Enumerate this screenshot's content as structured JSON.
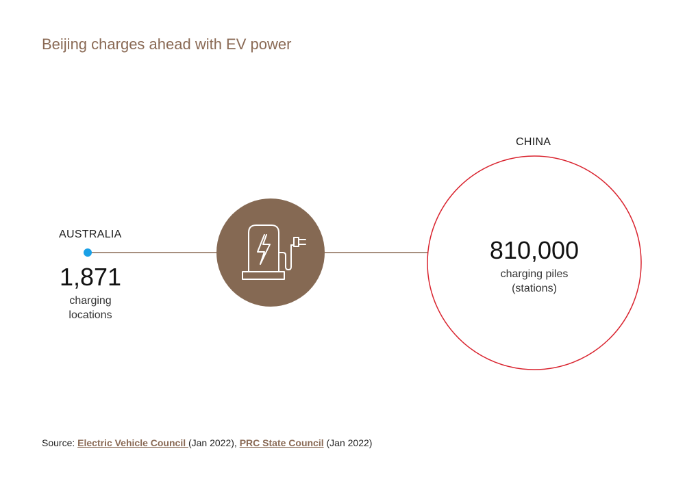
{
  "title": "Beijing charges ahead with EV power",
  "colors": {
    "title": "#8a6a55",
    "connector_line": "#8a6a55",
    "icon_circle": "#856953",
    "australia_dot": "#1aa0e6",
    "china_ring": "#d9232e",
    "source_link": "#8a6a55"
  },
  "icon": "ev-charger-icon",
  "chart_data": {
    "type": "bubble-comparison",
    "title": "Beijing charges ahead with EV power",
    "items": [
      {
        "country": "AUSTRALIA",
        "value": 1871,
        "value_label": "1,871",
        "unit_lines": [
          "charging",
          "locations"
        ]
      },
      {
        "country": "CHINA",
        "value": 810000,
        "value_label": "810,000",
        "unit_lines": [
          "charging piles",
          "(stations)"
        ]
      }
    ]
  },
  "source": {
    "prefix": "Source: ",
    "link1": "Electric Vehicle Council ",
    "date1": "(Jan 2022), ",
    "link2": "PRC State Council",
    "date2": " (Jan 2022)"
  }
}
